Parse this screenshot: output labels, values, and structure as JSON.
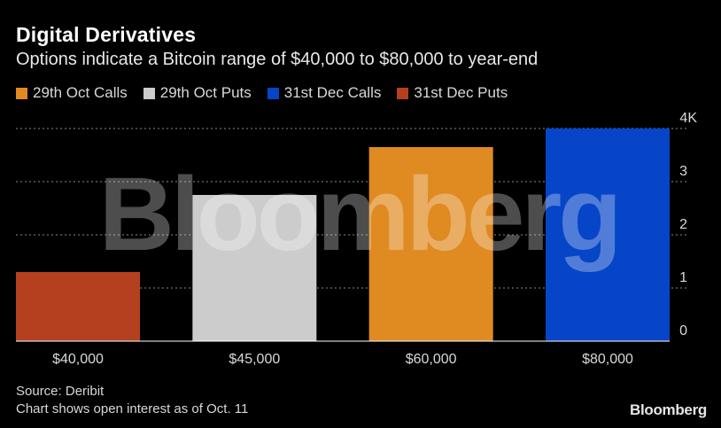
{
  "chart_data": {
    "type": "bar",
    "title": "Digital Derivatives",
    "subtitle": "Options indicate a Bitcoin range of $40,000 to $80,000 to year-end",
    "categories": [
      "$40,000",
      "$45,000",
      "$60,000",
      "$80,000"
    ],
    "series": [
      {
        "name": "31st Dec Puts",
        "color": "#b5401f",
        "values": [
          1.3,
          null,
          null,
          null
        ]
      },
      {
        "name": "29th Oct Puts",
        "color": "#cccccc",
        "values": [
          null,
          2.75,
          null,
          null
        ]
      },
      {
        "name": "29th Oct Calls",
        "color": "#e08a22",
        "values": [
          null,
          null,
          3.65,
          null
        ]
      },
      {
        "name": "31st Dec Calls",
        "color": "#0645c8",
        "values": [
          null,
          null,
          null,
          4.0
        ]
      }
    ],
    "legend": [
      {
        "name": "29th Oct Calls",
        "color": "#e08a22"
      },
      {
        "name": "29th Oct Puts",
        "color": "#cccccc"
      },
      {
        "name": "31st Dec Calls",
        "color": "#0645c8"
      },
      {
        "name": "31st Dec Puts",
        "color": "#b5401f"
      }
    ],
    "legend_position": "top",
    "ylim": [
      0,
      4
    ],
    "yticks": [
      "0",
      "1",
      "2",
      "3",
      "4K"
    ],
    "ytick_values": [
      0,
      1,
      2,
      3,
      4
    ],
    "grid": true,
    "xlabel": "",
    "ylabel": ""
  },
  "source": "Source: Deribit",
  "note": "Chart shows open interest as of Oct. 11",
  "watermark": "Bloomberg",
  "brand": "Bloomberg"
}
